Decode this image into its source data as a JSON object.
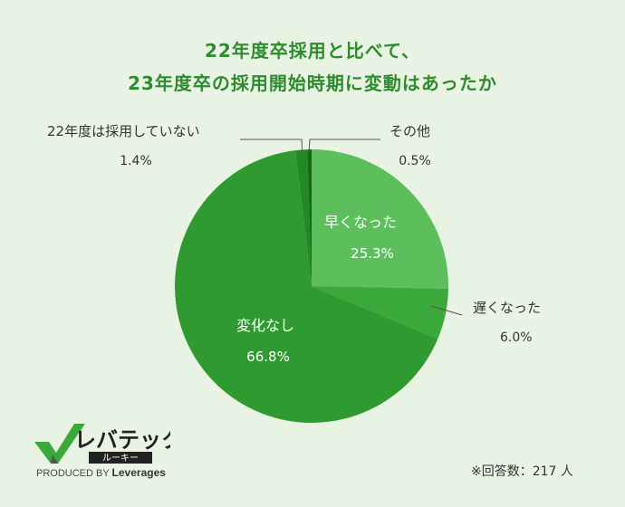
{
  "title": {
    "line1": "22年度卒採用と比べて、",
    "line2": "23年度卒の採用開始時期に変動はあったか"
  },
  "chart_data": {
    "type": "pie",
    "slices": [
      {
        "label": "早くなった",
        "value": 25.3,
        "value_label": "25.3%",
        "color": "#5cbf5c",
        "label_pos": "inside"
      },
      {
        "label": "遅くなった",
        "value": 6.0,
        "value_label": "6.0%",
        "color": "#3aa83a",
        "label_pos": "outside"
      },
      {
        "label": "変化なし",
        "value": 66.8,
        "value_label": "66.8%",
        "color": "#2f9a2f",
        "label_pos": "inside"
      },
      {
        "label": "22年度は採用していない",
        "value": 1.4,
        "value_label": "1.4%",
        "color": "#238a23",
        "label_pos": "outside"
      },
      {
        "label": "その他",
        "value": 0.5,
        "value_label": "0.5%",
        "color": "#146814",
        "label_pos": "outside"
      }
    ]
  },
  "logo": {
    "brand": "レバテック",
    "sub": "ルーキー",
    "produced_by": "PRODUCED BY",
    "company": "Leverages"
  },
  "note": "※回答数：217 人"
}
